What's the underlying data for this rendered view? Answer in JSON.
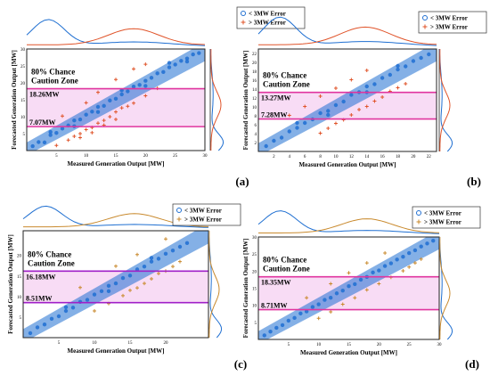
{
  "colors": {
    "low_error": "#1f6fd1",
    "high_error": "#e0542a",
    "high_error_c": "#c98a2e",
    "zone_fill": "#f8dcf5",
    "zone_line": "#e0359f",
    "zone_line_c": "#a020c8"
  },
  "chart_data": [
    {
      "panel": "(a)",
      "type": "scatter",
      "xlabel": "Measured Generation Output [MW]",
      "ylabel": "Forecasted Generation Output [MW]",
      "xlim": [
        0,
        30
      ],
      "ylim": [
        0,
        30
      ],
      "xticks": [
        "5",
        "10",
        "15",
        "20",
        "25",
        "30"
      ],
      "yticks": [
        "5",
        "10",
        "15",
        "20",
        "25",
        "30"
      ],
      "zone_title": [
        "80% Chance",
        "Caution Zone"
      ],
      "zone_lower": 7.07,
      "zone_upper": 18.26,
      "zone_lower_label": "7.07MW",
      "zone_upper_label": "18.26MW",
      "legend": [
        "< 3MW Error",
        "> 3MW Error"
      ],
      "series": [
        {
          "name": "< 3MW Error",
          "marker": "circle",
          "points": [
            [
              1,
              1.3
            ],
            [
              2,
              2.5
            ],
            [
              3,
              2.4
            ],
            [
              4,
              4.6
            ],
            [
              5,
              5.2
            ],
            [
              6,
              6.5
            ],
            [
              7,
              7.4
            ],
            [
              8,
              8.9
            ],
            [
              9,
              9.2
            ],
            [
              10,
              10.6
            ],
            [
              11,
              11.5
            ],
            [
              12,
              12.9
            ],
            [
              13,
              13.2
            ],
            [
              14,
              14.8
            ],
            [
              15,
              15.3
            ],
            [
              16,
              16.6
            ],
            [
              17,
              17.5
            ],
            [
              18,
              18.9
            ],
            [
              19,
              19.4
            ],
            [
              20,
              20.6
            ],
            [
              21,
              21.5
            ],
            [
              22,
              22.8
            ],
            [
              23,
              23.2
            ],
            [
              24,
              24.6
            ],
            [
              25,
              25.4
            ],
            [
              26,
              26.5
            ],
            [
              27,
              27.2
            ],
            [
              28,
              28.4
            ],
            [
              29,
              28.8
            ],
            [
              4,
              5.5
            ],
            [
              8,
              7.2
            ],
            [
              12,
              11.4
            ],
            [
              16,
              17.8
            ],
            [
              20,
              19.1
            ],
            [
              24,
              25.9
            ],
            [
              27,
              26.3
            ]
          ]
        },
        {
          "name": "> 3MW Error",
          "marker": "plus",
          "points": [
            [
              5,
              1.5
            ],
            [
              7,
              3.1
            ],
            [
              8,
              4.2
            ],
            [
              9,
              5.0
            ],
            [
              10,
              6.2
            ],
            [
              11,
              6.8
            ],
            [
              12,
              8.1
            ],
            [
              13,
              8.9
            ],
            [
              14,
              10.0
            ],
            [
              15,
              11.4
            ],
            [
              16,
              12.6
            ],
            [
              9,
              3.8
            ],
            [
              11,
              5.3
            ],
            [
              13,
              7.5
            ],
            [
              15,
              9.2
            ],
            [
              17,
              13.1
            ],
            [
              18,
              14.0
            ],
            [
              20,
              16.2
            ],
            [
              22,
              18.4
            ],
            [
              12,
              17.2
            ],
            [
              15,
              21.0
            ],
            [
              18,
              24.1
            ],
            [
              20,
              25.5
            ],
            [
              6,
              10.2
            ],
            [
              10,
              14.1
            ]
          ]
        }
      ]
    },
    {
      "panel": "(b)",
      "type": "scatter",
      "xlabel": "Measured Generation Output [MW]",
      "ylabel": "Forecasted Generation Output [MW]",
      "xlim": [
        0,
        23
      ],
      "ylim": [
        0,
        23
      ],
      "xticks": [
        "2",
        "4",
        "6",
        "8",
        "10",
        "12",
        "14",
        "16",
        "18",
        "20",
        "22"
      ],
      "yticks": [
        "2",
        "4",
        "6",
        "8",
        "10",
        "12",
        "14",
        "16",
        "18",
        "20",
        "22"
      ],
      "zone_title": [
        "80% Chance",
        "Caution Zone"
      ],
      "zone_lower": 7.28,
      "zone_upper": 13.27,
      "zone_lower_label": "7.28MW",
      "zone_upper_label": "13.27MW",
      "legend": [
        "< 3MW Error",
        "> 3MW Error"
      ],
      "series": [
        {
          "name": "< 3MW Error",
          "marker": "circle",
          "points": [
            [
              1,
              1.2
            ],
            [
              2,
              2.4
            ],
            [
              3,
              3.1
            ],
            [
              4,
              4.5
            ],
            [
              5,
              5.3
            ],
            [
              6,
              6.4
            ],
            [
              7,
              7.2
            ],
            [
              8,
              8.6
            ],
            [
              9,
              9.1
            ],
            [
              10,
              10.4
            ],
            [
              11,
              11.2
            ],
            [
              12,
              12.7
            ],
            [
              13,
              13.3
            ],
            [
              14,
              14.6
            ],
            [
              15,
              15.1
            ],
            [
              16,
              16.5
            ],
            [
              17,
              17.2
            ],
            [
              18,
              18.4
            ],
            [
              19,
              19.1
            ],
            [
              20,
              20.3
            ],
            [
              21,
              21.0
            ],
            [
              22,
              21.8
            ],
            [
              5,
              6.4
            ],
            [
              9,
              8.2
            ],
            [
              14,
              13.3
            ],
            [
              18,
              19.2
            ]
          ]
        },
        {
          "name": "> 3MW Error",
          "marker": "plus",
          "points": [
            [
              8,
              4.1
            ],
            [
              9,
              5.2
            ],
            [
              10,
              6.3
            ],
            [
              11,
              7.1
            ],
            [
              12,
              8.2
            ],
            [
              13,
              9.4
            ],
            [
              14,
              10.1
            ],
            [
              15,
              11.3
            ],
            [
              16,
              12.2
            ],
            [
              17,
              13.5
            ],
            [
              6,
              10.1
            ],
            [
              8,
              12.4
            ],
            [
              10,
              14.2
            ],
            [
              12,
              16.1
            ],
            [
              14,
              18.2
            ],
            [
              4,
              8.1
            ],
            [
              18,
              14.3
            ],
            [
              19,
              15.2
            ]
          ]
        }
      ]
    },
    {
      "panel": "(c)",
      "type": "scatter",
      "xlabel": "Measured Generation Output [MW]",
      "ylabel": "Forecasted Generation Output [MW]",
      "xlim": [
        0,
        26
      ],
      "ylim": [
        0,
        26
      ],
      "xticks": [
        "5",
        "10",
        "15",
        "20"
      ],
      "yticks": [
        "5",
        "10",
        "15",
        "20"
      ],
      "zone_title": [
        "80% Chance",
        "Caution Zone"
      ],
      "zone_lower": 8.51,
      "zone_upper": 16.18,
      "zone_lower_label": "8.51MW",
      "zone_upper_label": "16.18MW",
      "legend": [
        "< 3MW Error",
        "> 3MW Error"
      ],
      "series": [
        {
          "name": "< 3MW Error",
          "marker": "circle",
          "points": [
            [
              1,
              1.1
            ],
            [
              2,
              2.5
            ],
            [
              3,
              3.2
            ],
            [
              4,
              4.6
            ],
            [
              5,
              5.2
            ],
            [
              6,
              6.5
            ],
            [
              7,
              7.3
            ],
            [
              8,
              8.7
            ],
            [
              9,
              9.2
            ],
            [
              10,
              10.5
            ],
            [
              11,
              11.3
            ],
            [
              12,
              12.6
            ],
            [
              13,
              13.2
            ],
            [
              14,
              14.5
            ],
            [
              15,
              15.1
            ],
            [
              16,
              16.6
            ],
            [
              17,
              17.3
            ],
            [
              18,
              18.5
            ],
            [
              19,
              19.2
            ],
            [
              20,
              20.4
            ],
            [
              21,
              21.2
            ],
            [
              22,
              22.1
            ],
            [
              23,
              23.0
            ],
            [
              6,
              7.4
            ],
            [
              12,
              11.3
            ],
            [
              18,
              19.4
            ]
          ]
        },
        {
          "name": "> 3MW Error",
          "marker": "plus",
          "points": [
            [
              10,
              6.5
            ],
            [
              12,
              8.3
            ],
            [
              14,
              10.2
            ],
            [
              16,
              12.1
            ],
            [
              18,
              14.3
            ],
            [
              20,
              16.2
            ],
            [
              22,
              18.5
            ],
            [
              15,
              11.5
            ],
            [
              17,
              13.2
            ],
            [
              19,
              15.6
            ],
            [
              21,
              17.3
            ],
            [
              8,
              12.2
            ],
            [
              13,
              17.4
            ],
            [
              16,
              20.2
            ],
            [
              20,
              24.0
            ]
          ]
        }
      ]
    },
    {
      "panel": "(d)",
      "type": "scatter",
      "xlabel": "Measured Generation Output [MW]",
      "ylabel": "Forecasted Generation Output [MW]",
      "xlim": [
        0,
        30
      ],
      "ylim": [
        0,
        30
      ],
      "xticks": [
        "5",
        "10",
        "15",
        "20",
        "25",
        "30"
      ],
      "yticks": [
        "5",
        "10",
        "15",
        "20",
        "25",
        "30"
      ],
      "zone_title": [
        "80% Chance",
        "Caution Zone"
      ],
      "zone_lower": 8.71,
      "zone_upper": 18.35,
      "zone_lower_label": "8.71MW",
      "zone_upper_label": "18.35MW",
      "legend": [
        "< 3MW Error",
        "> 3MW Error"
      ],
      "series": [
        {
          "name": "< 3MW Error",
          "marker": "circle",
          "points": [
            [
              1,
              1.2
            ],
            [
              2,
              2.3
            ],
            [
              3,
              3.4
            ],
            [
              4,
              4.2
            ],
            [
              5,
              5.5
            ],
            [
              6,
              6.3
            ],
            [
              7,
              7.6
            ],
            [
              8,
              8.2
            ],
            [
              9,
              9.5
            ],
            [
              10,
              10.3
            ],
            [
              11,
              11.6
            ],
            [
              12,
              12.2
            ],
            [
              13,
              13.5
            ],
            [
              14,
              14.3
            ],
            [
              15,
              15.6
            ],
            [
              16,
              16.2
            ],
            [
              17,
              17.5
            ],
            [
              18,
              18.3
            ],
            [
              19,
              19.6
            ],
            [
              20,
              20.2
            ],
            [
              21,
              21.5
            ],
            [
              22,
              22.3
            ],
            [
              23,
              23.4
            ],
            [
              24,
              24.2
            ],
            [
              25,
              25.3
            ],
            [
              26,
              26.1
            ],
            [
              27,
              27.2
            ],
            [
              28,
              28.1
            ],
            [
              29,
              28.9
            ]
          ]
        },
        {
          "name": "> 3MW Error",
          "marker": "plus",
          "points": [
            [
              10,
              6.2
            ],
            [
              12,
              8.1
            ],
            [
              14,
              10.3
            ],
            [
              16,
              12.2
            ],
            [
              18,
              14.5
            ],
            [
              20,
              16.3
            ],
            [
              22,
              18.2
            ],
            [
              24,
              20.1
            ],
            [
              26,
              22.4
            ],
            [
              8,
              12.2
            ],
            [
              12,
              16.3
            ],
            [
              15,
              19.5
            ],
            [
              18,
              22.4
            ],
            [
              21,
              25.3
            ],
            [
              25,
              21.2
            ],
            [
              27,
              23.5
            ]
          ]
        }
      ]
    }
  ],
  "panel_labels": [
    "(a)",
    "(b)",
    "(c)",
    "(d)"
  ]
}
